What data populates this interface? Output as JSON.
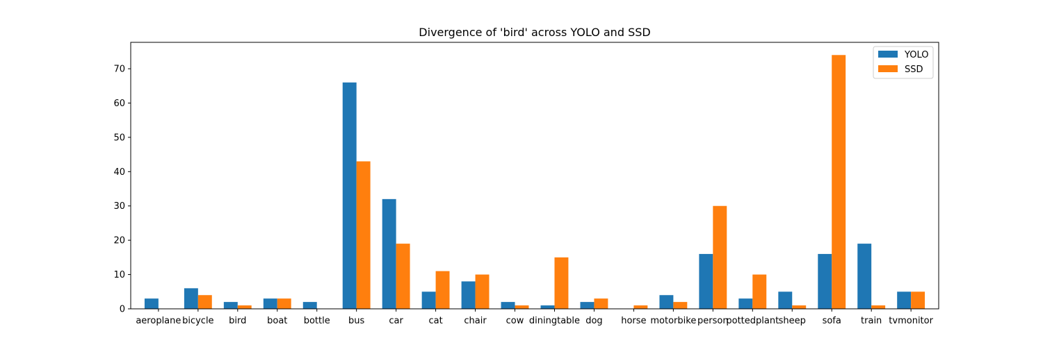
{
  "chart_data": {
    "type": "bar",
    "title": "Divergence of 'bird' across YOLO and SSD",
    "xlabel": "",
    "ylabel": "",
    "categories": [
      "aeroplane",
      "bicycle",
      "bird",
      "boat",
      "bottle",
      "bus",
      "car",
      "cat",
      "chair",
      "cow",
      "diningtable",
      "dog",
      "horse",
      "motorbike",
      "person",
      "pottedplant",
      "sheep",
      "sofa",
      "train",
      "tvmonitor"
    ],
    "series": [
      {
        "name": "YOLO",
        "color": "#1f77b4",
        "values": [
          3,
          6,
          2,
          3,
          2,
          66,
          32,
          5,
          8,
          2,
          1,
          2,
          0,
          4,
          16,
          3,
          5,
          16,
          19,
          5
        ]
      },
      {
        "name": "SSD",
        "color": "#ff7f0e",
        "values": [
          0,
          4,
          1,
          3,
          0,
          43,
          19,
          11,
          10,
          1,
          15,
          3,
          1,
          2,
          30,
          10,
          1,
          74,
          1,
          5
        ]
      }
    ],
    "ylim": [
      0,
      77.7
    ],
    "yticks": [
      0,
      10,
      20,
      30,
      40,
      50,
      60,
      70
    ],
    "grid": false,
    "legend_position": "top-right"
  }
}
